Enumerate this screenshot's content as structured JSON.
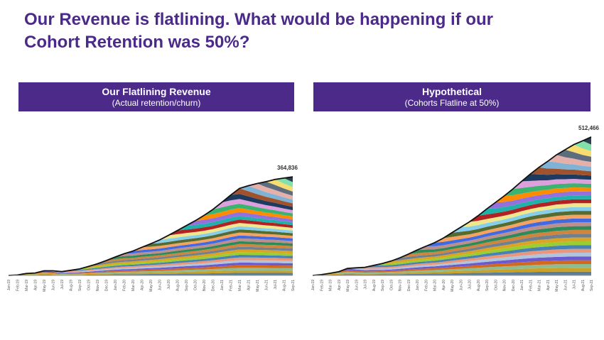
{
  "page": {
    "title_line1": "Our Revenue is flatlining. What would be happening if our",
    "title_line2": "Cohort Retention was 50%?"
  },
  "panels": [
    {
      "heading": "Our Flatlining Revenue",
      "subheading": "(Actual retention/churn)"
    },
    {
      "heading": "Hypothetical",
      "subheading": "(Cohorts Flatline at 50%)"
    }
  ],
  "cohort_colors": [
    "#5a7d9a",
    "#c9a227",
    "#8fbc8f",
    "#d2691e",
    "#6a5acd",
    "#b0c4de",
    "#e9967a",
    "#4682b4",
    "#9acd32",
    "#daa520",
    "#708090",
    "#cd853f",
    "#2e8b57",
    "#bc8f8f",
    "#4169e1",
    "#f4a460",
    "#556b2f",
    "#87ceeb",
    "#f0e68c",
    "#b22222",
    "#20b2aa",
    "#9370db",
    "#ff8c00",
    "#3cb371",
    "#dda0dd",
    "#1e3a5f",
    "#a0522d",
    "#7fb3d5",
    "#e6b0aa",
    "#5d6d7e",
    "#f7dc6f",
    "#82e0aa",
    "#2c3e50"
  ],
  "chart_data": [
    {
      "type": "area",
      "stacked": true,
      "title": "Our Flatlining Revenue",
      "subtitle": "(Actual retention/churn)",
      "x": [
        "Jan-19",
        "Feb-19",
        "Mar-19",
        "Apr-19",
        "May-19",
        "Jun-19",
        "Jul-19",
        "Aug-19",
        "Sep-19",
        "Oct-19",
        "Nov-19",
        "Dec-19",
        "Jan-20",
        "Feb-20",
        "Mar-20",
        "Apr-20",
        "May-20",
        "Jun-20",
        "Jul-20",
        "Aug-20",
        "Sep-20",
        "Oct-20",
        "Nov-20",
        "Dec-20",
        "Jan-21",
        "Feb-21",
        "Mar-21",
        "Apr-21",
        "May-21",
        "Jun-21",
        "Jul-21",
        "Aug-21",
        "Sep-21"
      ],
      "total": [
        0,
        1500,
        7000,
        9000,
        17000,
        17000,
        14000,
        19000,
        24000,
        33000,
        43000,
        55000,
        68000,
        80000,
        90000,
        104000,
        117000,
        131000,
        148000,
        166000,
        184000,
        202000,
        222000,
        244000,
        270000,
        297000,
        322000,
        332000,
        340000,
        347000,
        355000,
        360000,
        364836
      ],
      "final_label": "364,836",
      "ylim": [
        0,
        520000
      ]
    },
    {
      "type": "area",
      "stacked": true,
      "title": "Hypothetical",
      "subtitle": "(Cohorts Flatline at 50%)",
      "x": [
        "Jan-19",
        "Feb-19",
        "Mar-19",
        "Apr-19",
        "May-19",
        "Jun-19",
        "Jul-19",
        "Aug-19",
        "Sep-19",
        "Oct-19",
        "Nov-19",
        "Dec-19",
        "Jan-20",
        "Feb-20",
        "Mar-20",
        "Apr-20",
        "May-20",
        "Jun-20",
        "Jul-20",
        "Aug-20",
        "Sep-20",
        "Oct-20",
        "Nov-20",
        "Dec-20",
        "Jan-21",
        "Feb-21",
        "Mar-21",
        "Apr-21",
        "May-21",
        "Jun-21",
        "Jul-21",
        "Aug-21",
        "Sep-21"
      ],
      "total": [
        0,
        3000,
        8000,
        14000,
        26000,
        28000,
        30000,
        37000,
        44000,
        53000,
        65000,
        79000,
        94000,
        108000,
        121000,
        138000,
        158000,
        178000,
        198000,
        221000,
        246000,
        270000,
        294000,
        320000,
        348000,
        375000,
        400000,
        422000,
        446000,
        465000,
        484000,
        498000,
        512466
      ],
      "final_label": "512,466",
      "ylim": [
        0,
        520000
      ]
    }
  ]
}
